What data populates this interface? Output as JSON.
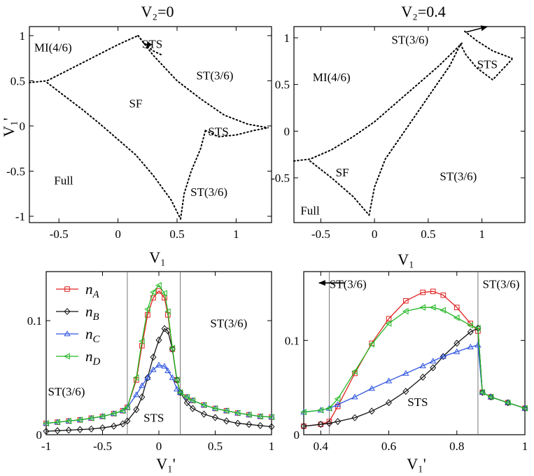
{
  "chart_data": [
    {
      "type": "scatter",
      "title": "V₂=0",
      "xlabel": "V₁",
      "ylabel": "V₁'",
      "xlim": [
        -0.75,
        1.3
      ],
      "ylim": [
        -1.07,
        1.1
      ],
      "xticks": [
        -0.5,
        0,
        0.5,
        1
      ],
      "yticks": [
        -1,
        -0.5,
        0,
        0.5,
        1
      ],
      "boundaries": [
        {
          "x": [
            -0.75,
            -0.6,
            -0.45,
            -0.3,
            -0.15,
            0.0,
            0.1,
            0.17
          ],
          "y": [
            0.48,
            0.5,
            0.6,
            0.7,
            0.8,
            0.9,
            0.96,
            1.0
          ]
        },
        {
          "x": [
            -0.6,
            -0.45,
            -0.3,
            -0.15,
            0.0,
            0.15,
            0.3,
            0.45,
            0.53
          ],
          "y": [
            0.48,
            0.33,
            0.18,
            0.02,
            -0.15,
            -0.32,
            -0.55,
            -0.82,
            -1.03
          ]
        },
        {
          "x": [
            0.17,
            0.3,
            0.5,
            0.7,
            0.9,
            1.1,
            1.27
          ],
          "y": [
            1.0,
            0.78,
            0.5,
            0.3,
            0.12,
            0.02,
            -0.02
          ]
        },
        {
          "x": [
            0.53,
            0.56,
            0.62,
            0.7,
            0.74
          ],
          "y": [
            -1.03,
            -0.75,
            -0.5,
            -0.25,
            -0.05
          ]
        },
        {
          "x": [
            0.74,
            0.85,
            1.0,
            1.15,
            1.27
          ],
          "y": [
            -0.05,
            -0.12,
            -0.1,
            -0.05,
            -0.02
          ]
        },
        {
          "x": [
            0.17,
            0.23,
            0.3,
            0.38
          ],
          "y": [
            1.0,
            0.9,
            0.83,
            0.78
          ]
        }
      ],
      "annotations": [
        {
          "text": "MI(4/6)",
          "x": -0.55,
          "y": 0.87
        },
        {
          "text": "STS",
          "x": 0.29,
          "y": 0.91
        },
        {
          "text": "ST(3/6)",
          "x": 0.82,
          "y": 0.56
        },
        {
          "text": "SF",
          "x": 0.15,
          "y": 0.25
        },
        {
          "text": "STS",
          "x": 0.85,
          "y": -0.06
        },
        {
          "text": "Full",
          "x": -0.46,
          "y": -0.6
        },
        {
          "text": "ST(3/6)",
          "x": 0.77,
          "y": -0.73
        }
      ],
      "arrow": {
        "from": [
          0.26,
          0.9
        ],
        "to": [
          0.24,
          0.86
        ]
      }
    },
    {
      "type": "scatter",
      "title": "V₂=0.4",
      "xlabel": "V₁",
      "ylabel": "",
      "xlim": [
        -0.75,
        1.4
      ],
      "ylim": [
        -0.98,
        1.12
      ],
      "xticks": [
        -0.5,
        0,
        0.5,
        1
      ],
      "yticks": [
        -0.5,
        0,
        0.5,
        1
      ],
      "boundaries": [
        {
          "x": [
            -0.75,
            -0.6,
            -0.4,
            -0.2,
            0.0,
            0.2,
            0.4,
            0.6,
            0.82
          ],
          "y": [
            -0.32,
            -0.3,
            -0.2,
            -0.06,
            0.1,
            0.3,
            0.5,
            0.7,
            0.95
          ]
        },
        {
          "x": [
            -0.6,
            -0.4,
            -0.2,
            -0.05
          ],
          "y": [
            -0.32,
            -0.5,
            -0.7,
            -0.9
          ]
        },
        {
          "x": [
            -0.05,
            0.0,
            0.1,
            0.25,
            0.4,
            0.55,
            0.7,
            0.8
          ],
          "y": [
            -0.9,
            -0.6,
            -0.3,
            -0.05,
            0.2,
            0.45,
            0.7,
            0.93
          ]
        },
        {
          "x": [
            0.8,
            0.85,
            0.95,
            1.1,
            1.28
          ],
          "y": [
            0.93,
            0.82,
            0.68,
            0.55,
            0.77
          ]
        },
        {
          "x": [
            0.84,
            0.95,
            1.1,
            1.28
          ],
          "y": [
            1.07,
            0.97,
            0.86,
            0.78
          ]
        }
      ],
      "annotations": [
        {
          "text": "ST(3/6)",
          "x": 0.33,
          "y": 0.98
        },
        {
          "text": "STS",
          "x": 1.05,
          "y": 0.72
        },
        {
          "text": "MI(4/6)",
          "x": -0.4,
          "y": 0.58
        },
        {
          "text": "SF",
          "x": -0.3,
          "y": -0.44
        },
        {
          "text": "ST(3/6)",
          "x": 0.78,
          "y": -0.48
        },
        {
          "text": "Full",
          "x": -0.6,
          "y": -0.85
        }
      ],
      "arrow": {
        "from": [
          0.85,
          1.06
        ],
        "to": [
          1.05,
          1.12
        ]
      }
    },
    {
      "type": "line",
      "title": "",
      "xlabel": "V₁'",
      "ylabel": "",
      "xlim": [
        -1,
        1
      ],
      "ylim": [
        0,
        0.143
      ],
      "xticks": [
        -1,
        -0.5,
        0,
        0.5,
        1
      ],
      "xticklabels": [
        "-1",
        "-0.5",
        "0",
        "0.5",
        "1"
      ],
      "yticks": [
        0,
        0.1
      ],
      "vlines": [
        -0.28,
        0.19
      ],
      "x": [
        -1,
        -0.9,
        -0.8,
        -0.7,
        -0.6,
        -0.5,
        -0.4,
        -0.32,
        -0.28,
        -0.2,
        -0.15,
        -0.1,
        -0.05,
        0.0,
        0.05,
        0.08,
        0.12,
        0.16,
        0.19,
        0.25,
        0.3,
        0.4,
        0.5,
        0.6,
        0.7,
        0.8,
        0.9,
        1.0
      ],
      "series": [
        {
          "name": "n",
          "sub": "A",
          "color": "#e02020",
          "marker": "square",
          "values": [
            0.01,
            0.011,
            0.012,
            0.013,
            0.0145,
            0.016,
            0.0185,
            0.021,
            0.024,
            0.048,
            0.078,
            0.105,
            0.12,
            0.126,
            0.12,
            0.105,
            0.075,
            0.048,
            0.037,
            0.033,
            0.03,
            0.026,
            0.023,
            0.021,
            0.019,
            0.0175,
            0.016,
            0.0155
          ]
        },
        {
          "name": "n",
          "sub": "B",
          "color": "#111111",
          "marker": "diamond",
          "values": [
            0.003,
            0.0035,
            0.004,
            0.0045,
            0.005,
            0.006,
            0.0075,
            0.0095,
            0.012,
            0.022,
            0.033,
            0.05,
            0.068,
            0.083,
            0.093,
            0.091,
            0.075,
            0.048,
            0.037,
            0.028,
            0.023,
            0.018,
            0.015,
            0.012,
            0.01,
            0.009,
            0.008,
            0.007
          ]
        },
        {
          "name": "n",
          "sub": "C",
          "color": "#2f55e0",
          "marker": "triangle",
          "values": [
            0.01,
            0.011,
            0.012,
            0.013,
            0.0145,
            0.016,
            0.0185,
            0.021,
            0.024,
            0.035,
            0.043,
            0.05,
            0.057,
            0.061,
            0.06,
            0.056,
            0.05,
            0.04,
            0.037,
            0.033,
            0.03,
            0.026,
            0.023,
            0.021,
            0.019,
            0.0175,
            0.016,
            0.0155
          ]
        },
        {
          "name": "n",
          "sub": "D",
          "color": "#22b822",
          "marker": "triangle-left",
          "values": [
            0.01,
            0.011,
            0.012,
            0.013,
            0.0145,
            0.016,
            0.0185,
            0.021,
            0.024,
            0.05,
            0.082,
            0.11,
            0.125,
            0.131,
            0.124,
            0.108,
            0.076,
            0.048,
            0.037,
            0.033,
            0.03,
            0.026,
            0.023,
            0.021,
            0.019,
            0.0175,
            0.016,
            0.0155
          ]
        }
      ],
      "annotations": [
        {
          "text": "ST(3/6)",
          "x": 0.62,
          "y": 0.098
        },
        {
          "text": "ST(3/6)",
          "x": -0.82,
          "y": 0.038
        },
        {
          "text": "STS",
          "x": -0.045,
          "y": 0.015
        }
      ]
    },
    {
      "type": "line",
      "title": "",
      "xlabel": "V₁'",
      "ylabel": "",
      "xlim": [
        0.35,
        1
      ],
      "ylim": [
        0,
        0.173
      ],
      "xticks": [
        0.4,
        0.6,
        0.8,
        1
      ],
      "xticklabels": [
        "0.4",
        "0.6",
        "0.8",
        "1"
      ],
      "yticks": [
        0,
        0.1
      ],
      "vlines": [
        0.425,
        0.862
      ],
      "x": [
        0.35,
        0.4,
        0.425,
        0.45,
        0.5,
        0.55,
        0.6,
        0.65,
        0.7,
        0.73,
        0.76,
        0.8,
        0.84,
        0.862,
        0.875,
        0.9,
        0.95,
        1.0
      ],
      "series": [
        {
          "name": "n",
          "sub": "A",
          "color": "#e02020",
          "marker": "square",
          "values": [
            0.009,
            0.011,
            0.014,
            0.03,
            0.065,
            0.097,
            0.123,
            0.142,
            0.151,
            0.152,
            0.148,
            0.135,
            0.118,
            0.11,
            0.045,
            0.04,
            0.034,
            0.028
          ]
        },
        {
          "name": "n",
          "sub": "B",
          "color": "#111111",
          "marker": "diamond",
          "values": [
            0.009,
            0.011,
            0.012,
            0.014,
            0.018,
            0.025,
            0.034,
            0.046,
            0.061,
            0.071,
            0.083,
            0.097,
            0.109,
            0.113,
            0.045,
            0.04,
            0.034,
            0.028
          ]
        },
        {
          "name": "n",
          "sub": "C",
          "color": "#2f55e0",
          "marker": "triangle",
          "values": [
            0.024,
            0.026,
            0.028,
            0.032,
            0.04,
            0.049,
            0.057,
            0.065,
            0.073,
            0.078,
            0.083,
            0.088,
            0.093,
            0.095,
            0.045,
            0.04,
            0.034,
            0.028
          ]
        },
        {
          "name": "n",
          "sub": "D",
          "color": "#22b822",
          "marker": "triangle-left",
          "values": [
            0.024,
            0.026,
            0.028,
            0.038,
            0.067,
            0.096,
            0.118,
            0.131,
            0.135,
            0.135,
            0.132,
            0.124,
            0.116,
            0.113,
            0.045,
            0.04,
            0.034,
            0.028
          ]
        }
      ],
      "annotations": [
        {
          "text": "ST(3/6)",
          "x": 0.48,
          "y": 0.16
        },
        {
          "text": "ST(3/6)",
          "x": 0.93,
          "y": 0.16
        },
        {
          "text": "STS",
          "x": 0.685,
          "y": 0.035
        }
      ],
      "arrow": {
        "from": [
          0.47,
          0.161
        ],
        "to": [
          0.395,
          0.161
        ]
      }
    }
  ]
}
